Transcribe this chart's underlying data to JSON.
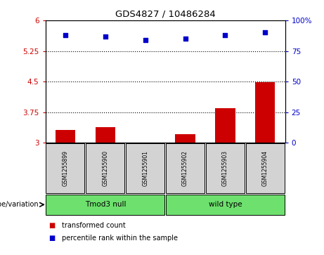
{
  "title": "GDS4827 / 10486284",
  "samples": [
    "GSM1255899",
    "GSM1255900",
    "GSM1255901",
    "GSM1255902",
    "GSM1255903",
    "GSM1255904"
  ],
  "bar_values": [
    3.32,
    3.38,
    3.0,
    3.22,
    3.85,
    4.48
  ],
  "scatter_values": [
    88,
    87,
    84,
    85,
    88,
    90
  ],
  "bar_color": "#cc0000",
  "scatter_color": "#0000cc",
  "ylim_left": [
    3.0,
    6.0
  ],
  "ylim_right": [
    0,
    100
  ],
  "yticks_left": [
    3.0,
    3.75,
    4.5,
    5.25,
    6.0
  ],
  "ytick_labels_left": [
    "3",
    "3.75",
    "4.5",
    "5.25",
    "6"
  ],
  "yticks_right": [
    0,
    25,
    50,
    75,
    100
  ],
  "ytick_labels_right": [
    "0",
    "25",
    "50",
    "75",
    "100%"
  ],
  "hlines": [
    3.75,
    4.5,
    5.25
  ],
  "groups": [
    {
      "label": "Tmod3 null",
      "start": 0,
      "end": 3,
      "color": "#6ee06e"
    },
    {
      "label": "wild type",
      "start": 3,
      "end": 6,
      "color": "#6ee06e"
    }
  ],
  "genotype_label": "genotype/variation",
  "legend_bar_label": "transformed count",
  "legend_scatter_label": "percentile rank within the sample",
  "background_color": "#ffffff",
  "sample_box_color": "#d3d3d3"
}
